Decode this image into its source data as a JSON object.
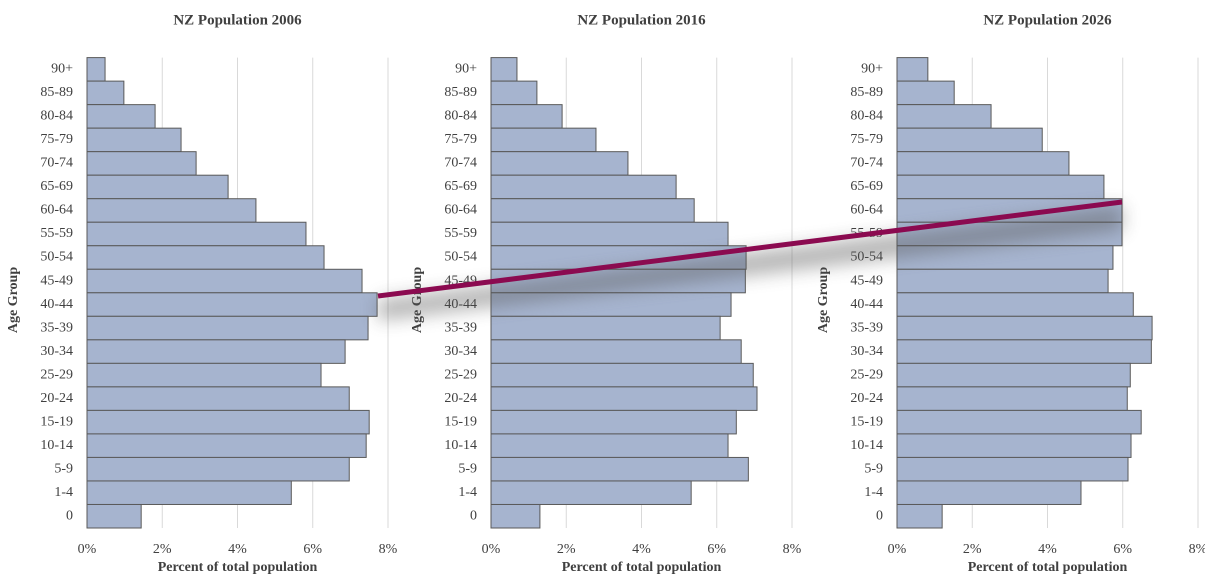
{
  "chart_data": [
    {
      "type": "barh",
      "title": "NZ Population 2006",
      "xlabel": "Percent of total population",
      "ylabel": "Age Group",
      "categories": [
        "90+",
        "85-89",
        "80-84",
        "75-79",
        "70-74",
        "65-69",
        "60-64",
        "55-59",
        "50-54",
        "45-49",
        "40-44",
        "35-39",
        "30-34",
        "25-29",
        "20-24",
        "15-19",
        "10-14",
        "5-9",
        "1-4",
        "0"
      ],
      "values": [
        0.48,
        0.98,
        1.81,
        2.5,
        2.9,
        3.75,
        4.49,
        5.82,
        6.3,
        7.31,
        7.71,
        7.47,
        6.86,
        6.22,
        6.97,
        7.5,
        7.42,
        6.97,
        5.43,
        1.44
      ],
      "color": "#a6b4cf",
      "xlim": [
        0,
        8
      ],
      "xticks": [
        {
          "value": 0,
          "label": "0%"
        },
        {
          "value": 2,
          "label": "2%"
        },
        {
          "value": 4,
          "label": "4%"
        },
        {
          "value": 6,
          "label": "6%"
        },
        {
          "value": 8,
          "label": "8%"
        }
      ],
      "grid": true
    },
    {
      "type": "barh",
      "title": "NZ Population 2016",
      "xlabel": "Percent of total population",
      "ylabel": "Age Group",
      "categories": [
        "90+",
        "85-89",
        "80-84",
        "75-79",
        "70-74",
        "65-69",
        "60-64",
        "55-59",
        "50-54",
        "45-49",
        "40-44",
        "35-39",
        "30-34",
        "25-29",
        "20-24",
        "15-19",
        "10-14",
        "5-9",
        "1-4",
        "0"
      ],
      "values": [
        0.69,
        1.22,
        1.89,
        2.79,
        3.64,
        4.92,
        5.4,
        6.3,
        6.78,
        6.76,
        6.38,
        6.09,
        6.65,
        6.97,
        7.07,
        6.52,
        6.3,
        6.84,
        5.32,
        1.3
      ],
      "color": "#a6b4cf",
      "xlim": [
        0,
        8
      ],
      "xticks": [
        {
          "value": 0,
          "label": "0%"
        },
        {
          "value": 2,
          "label": "2%"
        },
        {
          "value": 4,
          "label": "4%"
        },
        {
          "value": 6,
          "label": "6%"
        },
        {
          "value": 8,
          "label": "8%"
        }
      ],
      "grid": true
    },
    {
      "type": "barh",
      "title": "NZ Population 2026",
      "xlabel": "Percent of total population",
      "ylabel": "Age Group",
      "categories": [
        "90+",
        "85-89",
        "80-84",
        "75-79",
        "70-74",
        "65-69",
        "60-64",
        "55-59",
        "50-54",
        "45-49",
        "40-44",
        "35-39",
        "30-34",
        "25-29",
        "20-24",
        "15-19",
        "10-14",
        "5-9",
        "1-4",
        "0"
      ],
      "values": [
        0.82,
        1.52,
        2.5,
        3.86,
        4.57,
        5.5,
        5.98,
        5.98,
        5.74,
        5.61,
        6.28,
        6.78,
        6.76,
        6.2,
        6.12,
        6.49,
        6.22,
        6.14,
        4.89,
        1.2
      ],
      "color": "#a6b4cf",
      "xlim": [
        0,
        8
      ],
      "xticks": [
        {
          "value": 0,
          "label": "0%"
        },
        {
          "value": 2,
          "label": "2%"
        },
        {
          "value": 4,
          "label": "4%"
        },
        {
          "value": 6,
          "label": "6%"
        },
        {
          "value": 8,
          "label": "8%"
        }
      ],
      "grid": true
    }
  ]
}
